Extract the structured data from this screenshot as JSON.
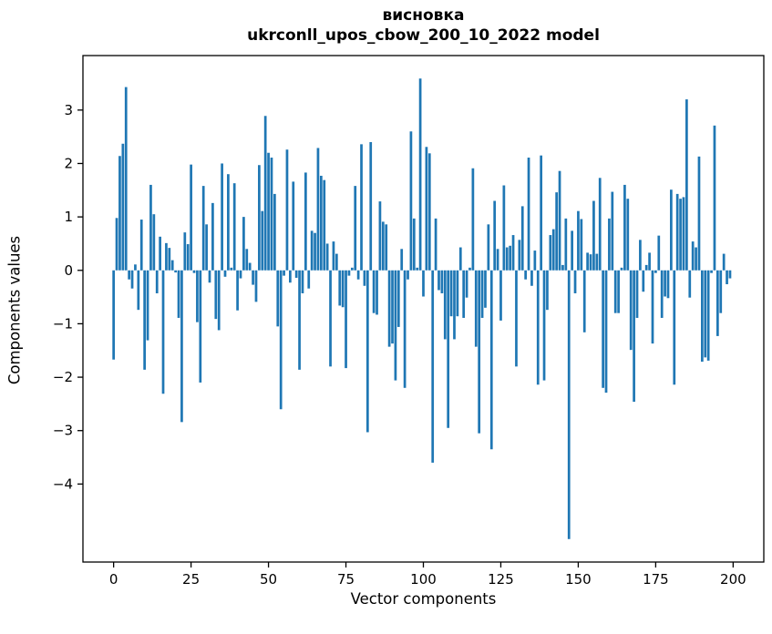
{
  "title": {
    "line1": "висновка",
    "line2": "ukrconll_upos_cbow_200_10_2022 model"
  },
  "chart_data": {
    "type": "bar",
    "title": "висновка",
    "subtitle": "ukrconll_upos_cbow_200_10_2022 model",
    "xlabel": "Vector components",
    "ylabel": "Components values",
    "bar_color": "#1f77b4",
    "axis_color": "#000000",
    "background_color": "#ffffff",
    "grid": false,
    "legend": false,
    "n_bars": 200,
    "xlim": [
      -9.9,
      209.9
    ],
    "ylim": [
      -5.46,
      4.02
    ],
    "x_ticks": [
      0,
      25,
      50,
      75,
      100,
      125,
      150,
      175,
      200
    ],
    "x_tick_labels": [
      "0",
      "25",
      "50",
      "75",
      "100",
      "125",
      "150",
      "175",
      "200"
    ],
    "y_ticks": [
      3,
      2,
      1,
      0,
      -1,
      -2,
      -3,
      -4
    ],
    "y_tick_labels": [
      "3",
      "2",
      "1",
      "0",
      "−1",
      "−2",
      "−3",
      "−4"
    ],
    "values": [
      -1.67,
      0.98,
      2.14,
      2.37,
      3.43,
      -0.17,
      -0.34,
      0.11,
      -0.74,
      0.95,
      -1.86,
      -1.31,
      1.6,
      1.05,
      -0.43,
      0.63,
      -2.31,
      0.51,
      0.42,
      0.19,
      -0.04,
      -0.89,
      -2.84,
      0.71,
      0.49,
      1.98,
      -0.05,
      -0.97,
      -2.1,
      1.58,
      0.86,
      -0.23,
      1.26,
      -0.91,
      -1.12,
      2.0,
      -0.12,
      1.8,
      0.05,
      1.63,
      -0.75,
      -0.15,
      1.0,
      0.4,
      0.14,
      -0.27,
      -0.59,
      1.97,
      1.11,
      2.89,
      2.2,
      2.11,
      1.43,
      -1.05,
      -2.6,
      -0.1,
      2.26,
      -0.23,
      1.66,
      -0.14,
      -1.86,
      -0.43,
      1.83,
      -0.34,
      0.74,
      0.7,
      2.29,
      1.77,
      1.69,
      0.5,
      -1.8,
      0.54,
      0.31,
      -0.66,
      -0.69,
      -1.83,
      -0.1,
      0.05,
      1.58,
      -0.17,
      2.36,
      -0.29,
      -3.03,
      2.4,
      -0.8,
      -0.83,
      1.29,
      0.91,
      0.86,
      -1.43,
      -1.37,
      -2.06,
      -1.06,
      0.4,
      -2.2,
      -0.17,
      2.6,
      0.97,
      0.05,
      3.59,
      -0.49,
      2.31,
      2.19,
      -3.6,
      0.97,
      -0.37,
      -0.43,
      -1.29,
      -2.95,
      -0.86,
      -1.29,
      -0.86,
      0.43,
      -0.89,
      -0.51,
      0.05,
      1.91,
      -1.43,
      -3.05,
      -0.89,
      -0.7,
      0.86,
      -3.35,
      1.3,
      0.4,
      -0.94,
      1.59,
      0.43,
      0.46,
      0.66,
      -1.8,
      0.57,
      1.2,
      -0.17,
      2.11,
      -0.29,
      0.37,
      -2.14,
      2.15,
      -2.06,
      -0.74,
      0.66,
      0.77,
      1.46,
      1.86,
      0.1,
      0.97,
      -5.03,
      0.74,
      -0.43,
      1.11,
      0.96,
      -1.16,
      0.33,
      0.3,
      1.3,
      0.31,
      1.73,
      -2.2,
      -2.29,
      0.97,
      1.47,
      -0.8,
      -0.8,
      0.05,
      1.6,
      1.34,
      -1.49,
      -2.46,
      -0.89,
      0.57,
      -0.4,
      0.1,
      0.33,
      -1.37,
      -0.05,
      0.65,
      -0.89,
      -0.49,
      -0.52,
      1.51,
      -2.14,
      1.43,
      1.34,
      1.37,
      3.2,
      -0.51,
      0.54,
      0.43,
      2.13,
      -1.71,
      -1.63,
      -1.69,
      -0.05,
      2.71,
      -1.23,
      -0.8,
      0.31,
      -0.26,
      -0.15
    ]
  }
}
